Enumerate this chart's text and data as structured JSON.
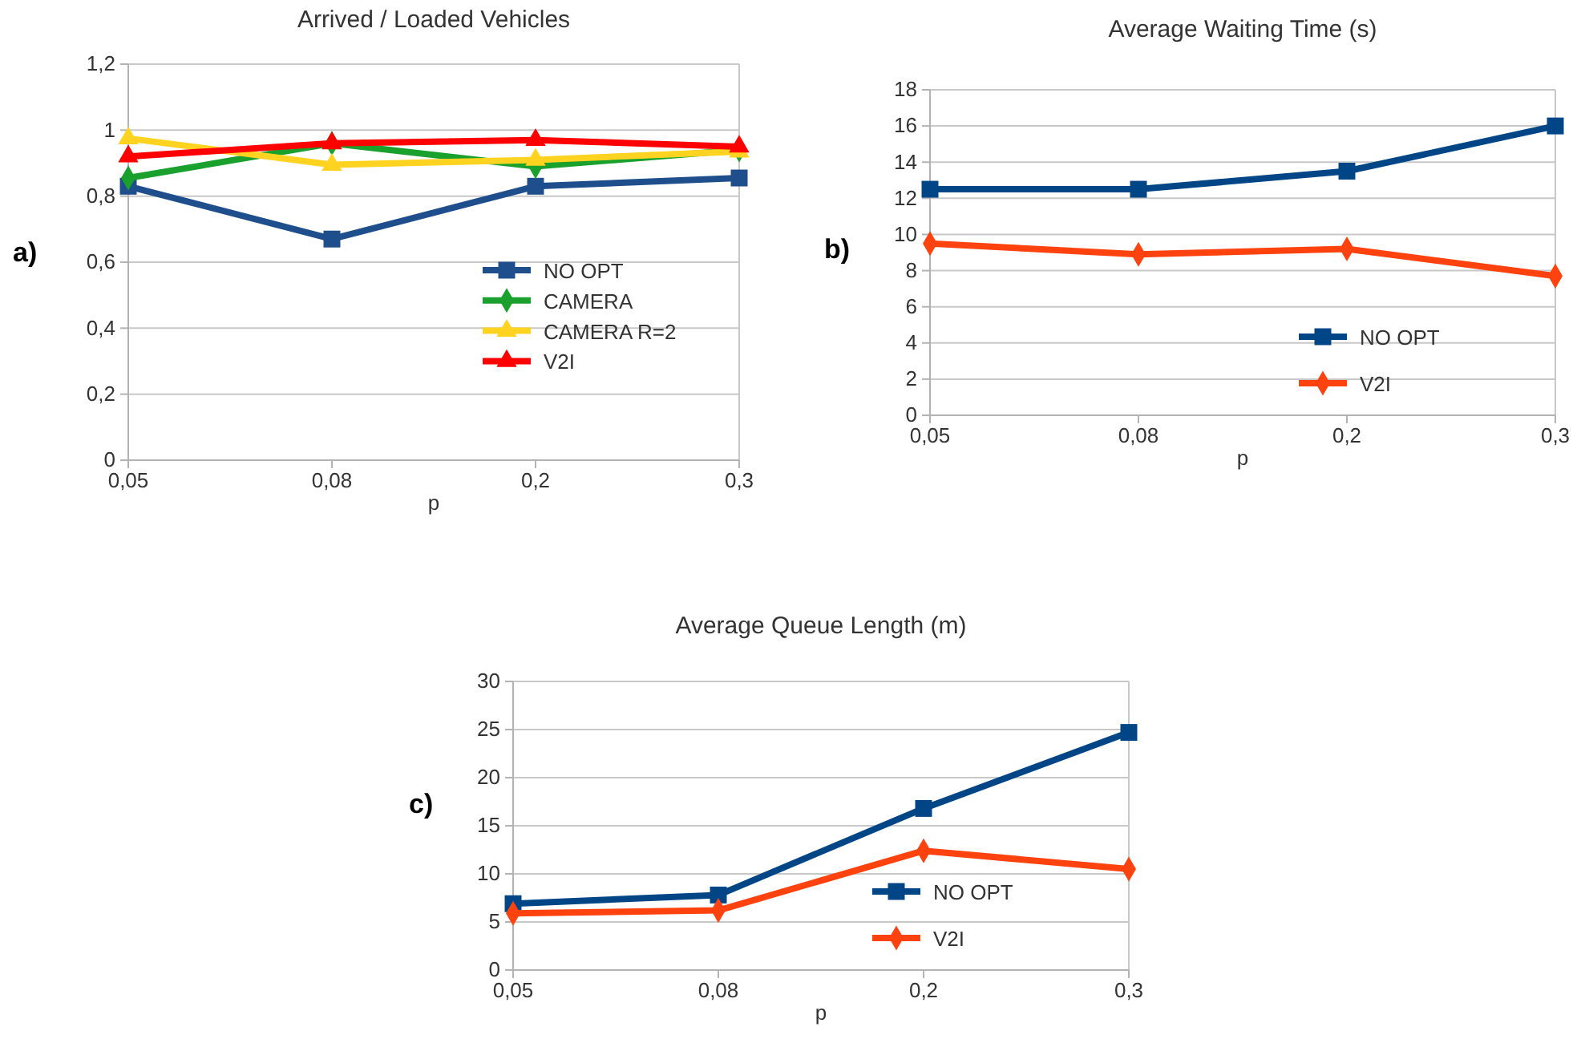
{
  "chart_data": [
    {
      "type": "line",
      "title": "Arrived / Loaded Vehicles",
      "xlabel": "p",
      "annotations": [
        "a)"
      ],
      "categories": [
        "0,05",
        "0,08",
        "0,2",
        "0,3"
      ],
      "ylim": [
        0,
        1.2
      ],
      "yticks": [
        0,
        {
          "value": 0.2,
          "label": "0,2"
        },
        {
          "value": 0.4,
          "label": "0,4"
        },
        {
          "value": 0.6,
          "label": "0,6"
        },
        {
          "value": 0.8,
          "label": "0,8"
        },
        1,
        {
          "value": 1.2,
          "label": "1,2"
        }
      ],
      "grid": "y",
      "legend": "right",
      "line_style": "solid",
      "series": [
        {
          "name": "NO OPT",
          "color": "#1f4e8c",
          "marker": "square",
          "values": [
            0.83,
            0.67,
            0.83,
            0.855
          ]
        },
        {
          "name": "CAMERA",
          "color": "#1aa02c",
          "marker": "diamond",
          "values": [
            0.855,
            0.96,
            0.89,
            0.94
          ]
        },
        {
          "name": "CAMERA R=2",
          "color": "#ffd320",
          "marker": "triangle",
          "values": [
            0.975,
            0.895,
            0.91,
            0.935
          ]
        },
        {
          "name": "V2I",
          "color": "#ff0000",
          "marker": "triangle",
          "values": [
            0.92,
            0.96,
            0.97,
            0.95
          ]
        }
      ]
    },
    {
      "type": "line",
      "title": "Average Waiting Time (s)",
      "xlabel": "p",
      "annotations": [
        "b)"
      ],
      "categories": [
        "0,05",
        "0,08",
        "0,2",
        "0,3"
      ],
      "ylim": [
        0,
        18
      ],
      "yticks": [
        0,
        2,
        4,
        6,
        8,
        10,
        12,
        14,
        16,
        18
      ],
      "grid": "y",
      "legend": "bottom right",
      "line_style": "solid",
      "series": [
        {
          "name": "NO OPT",
          "color": "#004586",
          "marker": "square",
          "values": [
            12.5,
            12.5,
            13.5,
            16.0
          ]
        },
        {
          "name": "V2I",
          "color": "#ff420e",
          "marker": "diamond",
          "values": [
            9.5,
            8.9,
            9.2,
            7.7
          ]
        }
      ]
    },
    {
      "type": "line",
      "title": "Average Queue Length (m)",
      "xlabel": "p",
      "annotations": [
        "c)"
      ],
      "categories": [
        "0,05",
        "0,08",
        "0,2",
        "0,3"
      ],
      "ylim": [
        0,
        30
      ],
      "yticks": [
        0,
        5,
        10,
        15,
        20,
        25,
        30
      ],
      "grid": "y",
      "legend": "bottom right",
      "line_style": "solid",
      "series": [
        {
          "name": "NO OPT",
          "color": "#004586",
          "marker": "square",
          "values": [
            6.9,
            7.8,
            16.8,
            24.7
          ]
        },
        {
          "name": "V2I",
          "color": "#ff420e",
          "marker": "diamond",
          "values": [
            5.9,
            6.2,
            12.4,
            10.5
          ]
        }
      ]
    }
  ]
}
